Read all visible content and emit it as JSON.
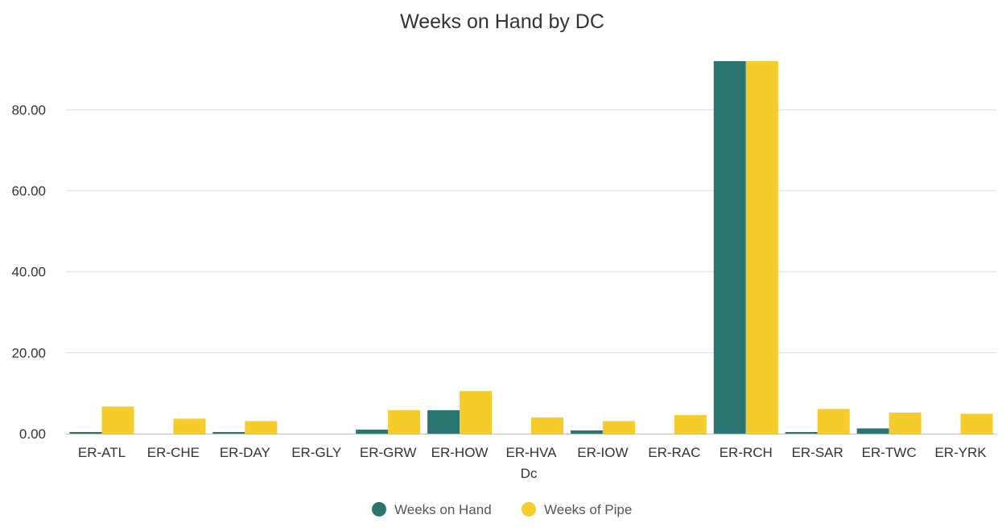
{
  "chart_data": {
    "type": "bar",
    "title": "Weeks on Hand by DC",
    "xlabel": "Dc",
    "ylabel": "",
    "ylim": [
      0,
      92
    ],
    "yticks": [
      0,
      20,
      40,
      60,
      80
    ],
    "ytick_labels": [
      "0.00",
      "20.00",
      "40.00",
      "60.00",
      "80.00"
    ],
    "grid": true,
    "legend_position": "bottom",
    "categories": [
      "ER-ATL",
      "ER-CHE",
      "ER-DAY",
      "ER-GLY",
      "ER-GRW",
      "ER-HOW",
      "ER-HVA",
      "ER-IOW",
      "ER-RAC",
      "ER-RCH",
      "ER-SAR",
      "ER-TWC",
      "ER-YRK"
    ],
    "series": [
      {
        "name": "Weeks on Hand",
        "color": "#2b7570",
        "values": [
          0.4,
          0.0,
          0.4,
          0.0,
          1.0,
          5.8,
          0.0,
          0.8,
          0.0,
          92.0,
          0.4,
          1.3,
          0.0
        ]
      },
      {
        "name": "Weeks of Pipe",
        "color": "#f6cc2a",
        "values": [
          6.7,
          3.7,
          3.1,
          0.0,
          5.8,
          10.5,
          4.0,
          3.1,
          4.6,
          92.0,
          6.1,
          5.2,
          4.9
        ]
      }
    ]
  }
}
